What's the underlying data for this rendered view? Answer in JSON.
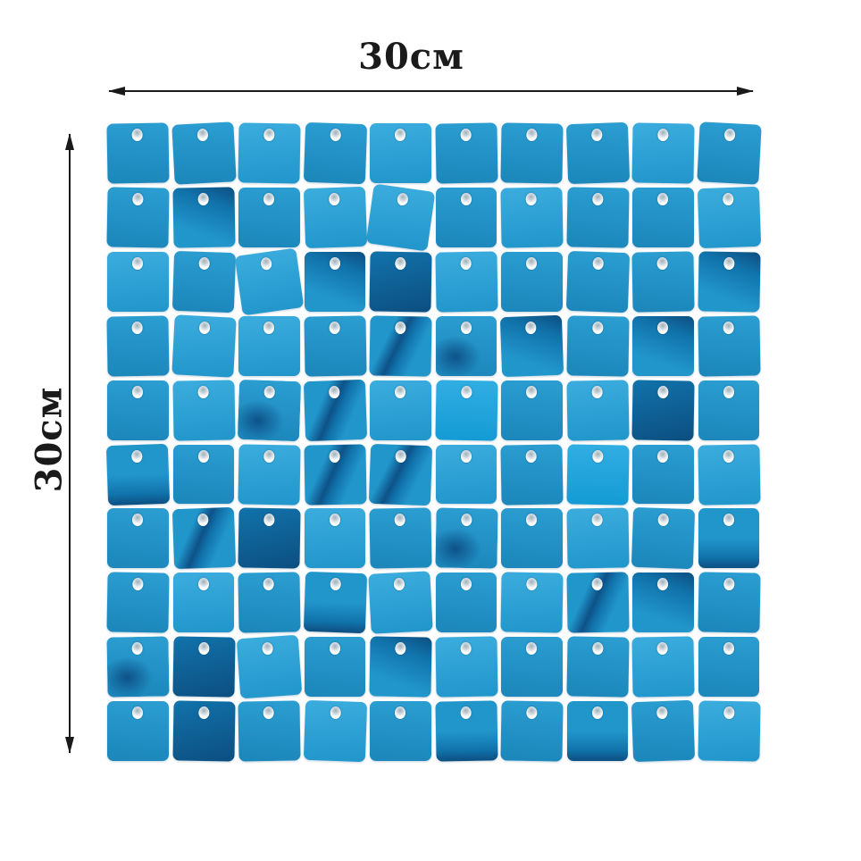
{
  "dimensions": {
    "top": {
      "label": "30см",
      "arrow": "horizontal-double-headed"
    },
    "left": {
      "label": "30см",
      "arrow": "vertical-double-headed"
    }
  },
  "panel": {
    "rows": 10,
    "cols": 10,
    "palette": {
      "text": "#1a1a1a",
      "line": "#1a1a1a",
      "mid1": "#2b9ed2",
      "mid2": "#1b86ba",
      "light1": "#3bacdd",
      "light2": "#2196cb",
      "bright1": "#31aee3",
      "bright2": "#149bd4",
      "dark1": "#1173ab",
      "dark2": "#0c4e80",
      "navy": "#0d5288"
    },
    "sequins": [
      {
        "r": -1,
        "v": 0
      },
      {
        "r": -3,
        "v": 0
      },
      {
        "r": 1,
        "v": 1
      },
      {
        "r": 2,
        "v": 0
      },
      {
        "r": 0,
        "v": 1
      },
      {
        "r": -1,
        "v": 0
      },
      {
        "r": 1,
        "v": 0
      },
      {
        "r": -2,
        "v": 0
      },
      {
        "r": 1,
        "v": 1
      },
      {
        "r": 3,
        "v": 0
      },
      {
        "r": 1,
        "v": 0
      },
      {
        "r": -1,
        "v": 3
      },
      {
        "r": 0,
        "v": 0
      },
      {
        "r": -2,
        "v": 1
      },
      {
        "r": 8,
        "v": 1
      },
      {
        "r": 0,
        "v": 0
      },
      {
        "r": -1,
        "v": 1
      },
      {
        "r": 1,
        "v": 0
      },
      {
        "r": 0,
        "v": 0
      },
      {
        "r": -2,
        "v": 1
      },
      {
        "r": 0,
        "v": 1
      },
      {
        "r": 2,
        "v": 0
      },
      {
        "r": -8,
        "v": 1
      },
      {
        "r": 0,
        "v": 3
      },
      {
        "r": 1,
        "v": 5
      },
      {
        "r": -1,
        "v": 1
      },
      {
        "r": 0,
        "v": 0
      },
      {
        "r": 2,
        "v": 0
      },
      {
        "r": -1,
        "v": 0
      },
      {
        "r": 1,
        "v": 3
      },
      {
        "r": -1,
        "v": 0
      },
      {
        "r": 3,
        "v": 1
      },
      {
        "r": 0,
        "v": 1
      },
      {
        "r": -1,
        "v": 0
      },
      {
        "r": 1,
        "v": 4
      },
      {
        "r": 0,
        "v": 7
      },
      {
        "r": -2,
        "v": 3
      },
      {
        "r": 1,
        "v": 0
      },
      {
        "r": 0,
        "v": 3
      },
      {
        "r": -1,
        "v": 0
      },
      {
        "r": 0,
        "v": 0
      },
      {
        "r": -1,
        "v": 1
      },
      {
        "r": 2,
        "v": 7
      },
      {
        "r": -2,
        "v": 4
      },
      {
        "r": 0,
        "v": 1
      },
      {
        "r": 1,
        "v": 2
      },
      {
        "r": 0,
        "v": 0
      },
      {
        "r": -1,
        "v": 1
      },
      {
        "r": 1,
        "v": 5
      },
      {
        "r": 0,
        "v": 0
      },
      {
        "r": -2,
        "v": 6
      },
      {
        "r": 0,
        "v": 0
      },
      {
        "r": 1,
        "v": 1
      },
      {
        "r": -1,
        "v": 4
      },
      {
        "r": 2,
        "v": 4
      },
      {
        "r": 0,
        "v": 1
      },
      {
        "r": -1,
        "v": 0
      },
      {
        "r": 1,
        "v": 2
      },
      {
        "r": 0,
        "v": 0
      },
      {
        "r": -1,
        "v": 1
      },
      {
        "r": 0,
        "v": 0
      },
      {
        "r": -2,
        "v": 4
      },
      {
        "r": 1,
        "v": 5
      },
      {
        "r": 0,
        "v": 1
      },
      {
        "r": -1,
        "v": 0
      },
      {
        "r": 1,
        "v": 7
      },
      {
        "r": 0,
        "v": 0
      },
      {
        "r": -1,
        "v": 1
      },
      {
        "r": 2,
        "v": 0
      },
      {
        "r": 0,
        "v": 6
      },
      {
        "r": 1,
        "v": 0
      },
      {
        "r": 0,
        "v": 1
      },
      {
        "r": -1,
        "v": 0
      },
      {
        "r": 2,
        "v": 6
      },
      {
        "r": -3,
        "v": 1
      },
      {
        "r": 0,
        "v": 0
      },
      {
        "r": 1,
        "v": 1
      },
      {
        "r": -1,
        "v": 4
      },
      {
        "r": 0,
        "v": 3
      },
      {
        "r": 1,
        "v": 0
      },
      {
        "r": -1,
        "v": 7
      },
      {
        "r": 1,
        "v": 5
      },
      {
        "r": -4,
        "v": 1
      },
      {
        "r": 0,
        "v": 0
      },
      {
        "r": 1,
        "v": 3
      },
      {
        "r": -1,
        "v": 1
      },
      {
        "r": 0,
        "v": 0
      },
      {
        "r": 1,
        "v": 0
      },
      {
        "r": -1,
        "v": 1
      },
      {
        "r": 0,
        "v": 0
      },
      {
        "r": 0,
        "v": 0
      },
      {
        "r": 1,
        "v": 5
      },
      {
        "r": -1,
        "v": 0
      },
      {
        "r": 2,
        "v": 1
      },
      {
        "r": 0,
        "v": 0
      },
      {
        "r": -1,
        "v": 6
      },
      {
        "r": 1,
        "v": 0
      },
      {
        "r": 0,
        "v": 6
      },
      {
        "r": -2,
        "v": 0
      },
      {
        "r": 1,
        "v": 1
      }
    ]
  }
}
